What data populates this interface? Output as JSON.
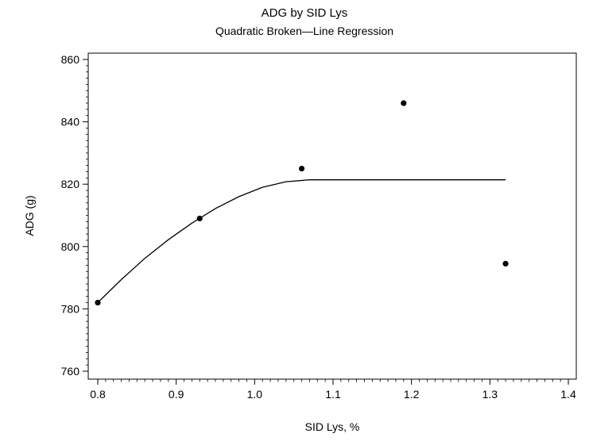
{
  "chart_data": {
    "type": "scatter",
    "title": "ADG by SID Lys",
    "subtitle": "Quadratic Broken—Line Regression",
    "xlabel": "SID Lys, %",
    "ylabel": "ADG (g)",
    "xlim": [
      0.8,
      1.4
    ],
    "ylim": [
      760,
      860
    ],
    "x_ticks": [
      0.8,
      0.9,
      1.0,
      1.1,
      1.2,
      1.3,
      1.4
    ],
    "x_tick_labels": [
      "0.8",
      "0.9",
      "1.0",
      "1.1",
      "1.2",
      "1.3",
      "1.4"
    ],
    "y_ticks": [
      760,
      780,
      800,
      820,
      840,
      860
    ],
    "y_tick_labels": [
      "760",
      "780",
      "800",
      "820",
      "840",
      "860"
    ],
    "grid": false,
    "legend": "none",
    "points": {
      "x": [
        0.8,
        0.93,
        1.06,
        1.19,
        1.32
      ],
      "y": [
        782,
        809,
        825,
        846,
        794.5
      ]
    },
    "fit_line": {
      "x": [
        0.8,
        0.83,
        0.86,
        0.89,
        0.92,
        0.95,
        0.98,
        1.01,
        1.04,
        1.07,
        1.1,
        1.15,
        1.2,
        1.25,
        1.32
      ],
      "y": [
        782,
        789.4,
        796.2,
        802.2,
        807.5,
        812.2,
        816,
        819,
        820.8,
        821.4,
        821.4,
        821.4,
        821.4,
        821.4,
        821.4
      ]
    }
  }
}
